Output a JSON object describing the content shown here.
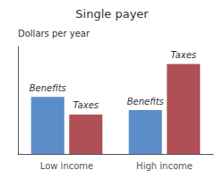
{
  "chart_data": {
    "type": "bar",
    "title": "Single payer",
    "ylabel": "Dollars per year",
    "categories": [
      "Low income",
      "High income"
    ],
    "series": [
      {
        "name": "Benefits",
        "color": "#5b8dc8",
        "values": [
          0.52,
          0.4
        ]
      },
      {
        "name": "Taxes",
        "color": "#b04f55",
        "values": [
          0.36,
          0.82
        ]
      }
    ],
    "annotations": [
      {
        "category": "Low income",
        "series": "Benefits",
        "text": "Benefits"
      },
      {
        "category": "Low income",
        "series": "Taxes",
        "text": "Taxes"
      },
      {
        "category": "High income",
        "series": "Benefits",
        "text": "Benefits"
      },
      {
        "category": "High income",
        "series": "Taxes",
        "text": "Taxes"
      }
    ],
    "ylim": [
      0,
      0.98
    ],
    "yticks": [],
    "grid": false,
    "tick_labels": "x"
  }
}
